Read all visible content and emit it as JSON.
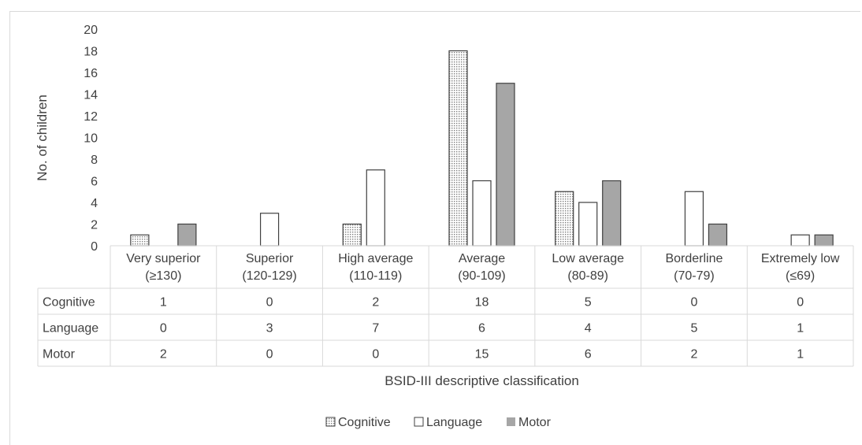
{
  "chart_data": {
    "type": "bar",
    "ylabel": "No. of children",
    "xlabel": "BSID-III descriptive classification",
    "ylim": [
      0,
      20
    ],
    "yticks": [
      0,
      2,
      4,
      6,
      8,
      10,
      12,
      14,
      16,
      18,
      20
    ],
    "categories": [
      [
        "Very superior",
        "(≥130)"
      ],
      [
        "Superior",
        "(120-129)"
      ],
      [
        "High average",
        "(110-119)"
      ],
      [
        "Average",
        "(90-109)"
      ],
      [
        "Low average",
        "(80-89)"
      ],
      [
        "Borderline",
        "(70-79)"
      ],
      [
        "Extremely low",
        "(≤69)"
      ]
    ],
    "series": [
      {
        "name": "Cognitive",
        "values": [
          1,
          0,
          2,
          18,
          5,
          0,
          0
        ],
        "fill": "dotted",
        "color": "#d9d9d9"
      },
      {
        "name": "Language",
        "values": [
          0,
          3,
          7,
          6,
          4,
          5,
          1
        ],
        "fill": "hollow",
        "color": "#ffffff"
      },
      {
        "name": "Motor",
        "values": [
          2,
          0,
          0,
          15,
          6,
          2,
          1
        ],
        "fill": "solid",
        "color": "#a6a6a6"
      }
    ],
    "data_table": true,
    "legend": "bottom",
    "grid": false
  }
}
